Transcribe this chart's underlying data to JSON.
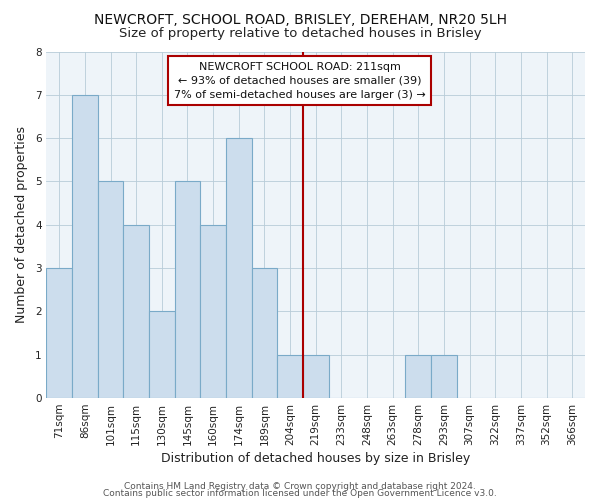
{
  "title": "NEWCROFT, SCHOOL ROAD, BRISLEY, DEREHAM, NR20 5LH",
  "subtitle": "Size of property relative to detached houses in Brisley",
  "xlabel": "Distribution of detached houses by size in Brisley",
  "ylabel": "Number of detached properties",
  "categories": [
    "71sqm",
    "86sqm",
    "101sqm",
    "115sqm",
    "130sqm",
    "145sqm",
    "160sqm",
    "174sqm",
    "189sqm",
    "204sqm",
    "219sqm",
    "233sqm",
    "248sqm",
    "263sqm",
    "278sqm",
    "293sqm",
    "307sqm",
    "322sqm",
    "337sqm",
    "352sqm",
    "366sqm"
  ],
  "values": [
    3,
    7,
    5,
    4,
    2,
    5,
    4,
    6,
    3,
    1,
    1,
    0,
    0,
    0,
    1,
    1,
    0,
    0,
    0,
    0,
    0
  ],
  "bar_color": "#ccdded",
  "bar_edge_color": "#7aaac8",
  "bg_color": "#eef4f9",
  "reference_line_x": 9.5,
  "reference_line_color": "#aa0000",
  "annotation_line1": "NEWCROFT SCHOOL ROAD: 211sqm",
  "annotation_line2": "← 93% of detached houses are smaller (39)",
  "annotation_line3": "7% of semi-detached houses are larger (3) →",
  "ylim": [
    0,
    8
  ],
  "yticks": [
    0,
    1,
    2,
    3,
    4,
    5,
    6,
    7,
    8
  ],
  "footer_line1": "Contains HM Land Registry data © Crown copyright and database right 2024.",
  "footer_line2": "Contains public sector information licensed under the Open Government Licence v3.0.",
  "title_fontsize": 10,
  "subtitle_fontsize": 9.5,
  "axis_label_fontsize": 9,
  "tick_fontsize": 7.5,
  "annotation_fontsize": 8,
  "footer_fontsize": 6.5
}
